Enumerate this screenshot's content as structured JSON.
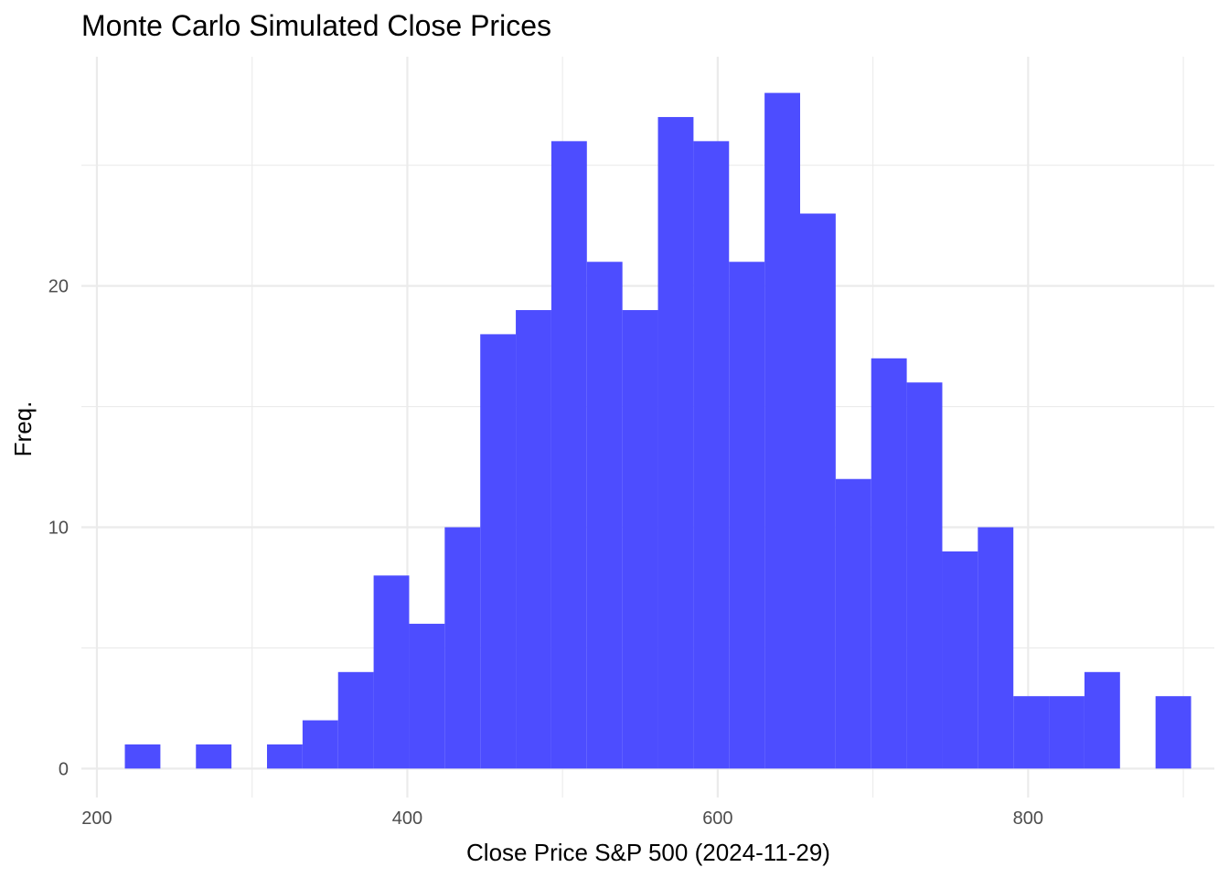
{
  "chart_data": {
    "type": "bar",
    "subtype": "histogram",
    "title": "Monte Carlo Simulated Close Prices",
    "xlabel": "Close Price S&P 500 (2024-11-29)",
    "ylabel": "Freq.",
    "xlim": [
      190,
      920
    ],
    "ylim": [
      -1.2,
      29.5
    ],
    "x_ticks": [
      200,
      400,
      600,
      800
    ],
    "x_tick_labels": [
      "200",
      "400",
      "600",
      "800"
    ],
    "y_ticks": [
      0,
      10,
      20
    ],
    "y_tick_labels": [
      "0",
      "10",
      "20"
    ],
    "x_minor_gridlines": [
      300,
      500,
      700,
      900
    ],
    "y_minor_gridlines": [
      5,
      15,
      25
    ],
    "grid": true,
    "legend": "none",
    "fill_color": "#4d4dff",
    "bin_width": 22.9,
    "bins": [
      {
        "x0": 218.0,
        "x1": 240.9,
        "count": 1
      },
      {
        "x0": 240.9,
        "x1": 263.8,
        "count": 0
      },
      {
        "x0": 263.8,
        "x1": 286.7,
        "count": 1
      },
      {
        "x0": 286.7,
        "x1": 309.6,
        "count": 0
      },
      {
        "x0": 309.6,
        "x1": 332.5,
        "count": 1
      },
      {
        "x0": 332.5,
        "x1": 355.4,
        "count": 2
      },
      {
        "x0": 355.4,
        "x1": 378.3,
        "count": 4
      },
      {
        "x0": 378.3,
        "x1": 401.2,
        "count": 8
      },
      {
        "x0": 401.2,
        "x1": 424.1,
        "count": 6
      },
      {
        "x0": 424.1,
        "x1": 447.0,
        "count": 10
      },
      {
        "x0": 447.0,
        "x1": 469.9,
        "count": 18
      },
      {
        "x0": 469.9,
        "x1": 492.8,
        "count": 19
      },
      {
        "x0": 492.8,
        "x1": 515.7,
        "count": 26
      },
      {
        "x0": 515.7,
        "x1": 538.6,
        "count": 21
      },
      {
        "x0": 538.6,
        "x1": 561.5,
        "count": 19
      },
      {
        "x0": 561.5,
        "x1": 584.4,
        "count": 27
      },
      {
        "x0": 584.4,
        "x1": 607.3,
        "count": 26
      },
      {
        "x0": 607.3,
        "x1": 630.2,
        "count": 21
      },
      {
        "x0": 630.2,
        "x1": 653.1,
        "count": 28
      },
      {
        "x0": 653.1,
        "x1": 676.0,
        "count": 23
      },
      {
        "x0": 676.0,
        "x1": 698.9,
        "count": 12
      },
      {
        "x0": 698.9,
        "x1": 721.8,
        "count": 17
      },
      {
        "x0": 721.8,
        "x1": 744.7,
        "count": 16
      },
      {
        "x0": 744.7,
        "x1": 767.6,
        "count": 9
      },
      {
        "x0": 767.6,
        "x1": 790.5,
        "count": 10
      },
      {
        "x0": 790.5,
        "x1": 813.4,
        "count": 3
      },
      {
        "x0": 813.4,
        "x1": 836.3,
        "count": 3
      },
      {
        "x0": 836.3,
        "x1": 859.2,
        "count": 4
      },
      {
        "x0": 859.2,
        "x1": 882.1,
        "count": 0
      },
      {
        "x0": 882.1,
        "x1": 905.0,
        "count": 3
      }
    ]
  }
}
